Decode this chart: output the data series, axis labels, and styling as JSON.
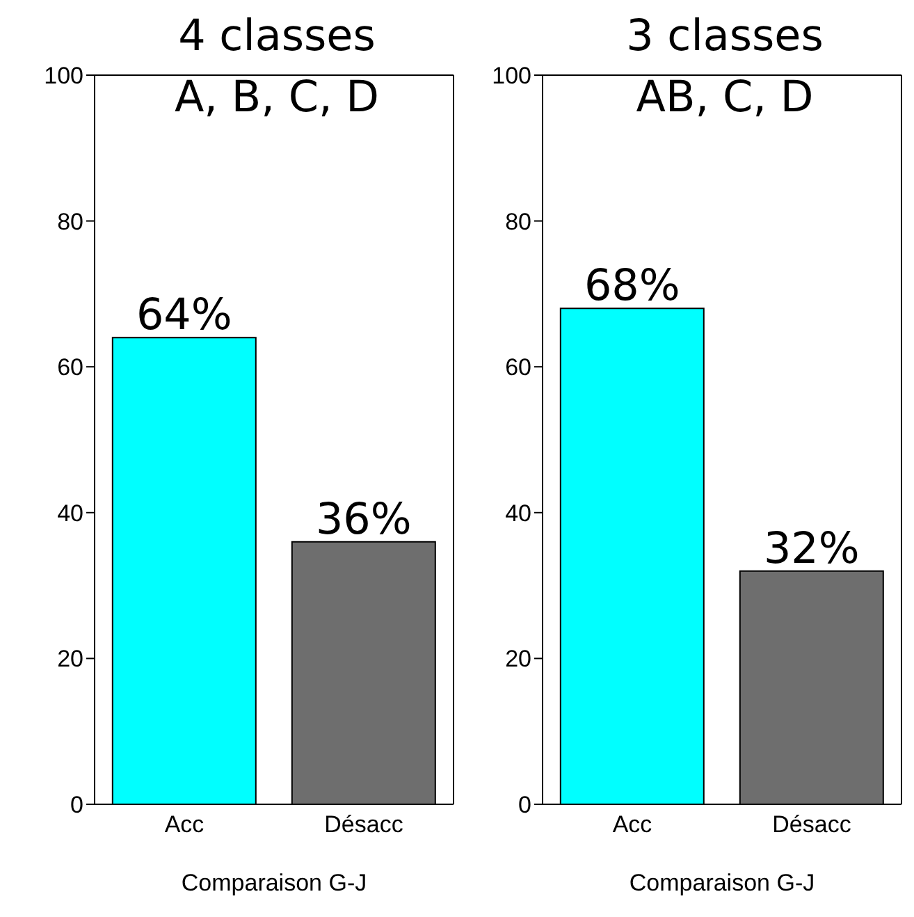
{
  "chart_data": [
    {
      "type": "bar",
      "title": "4 classes",
      "subtitle": "A, B, C, D",
      "xlabel": "Comparaison G-J",
      "categories": [
        "Acc",
        "Désacc"
      ],
      "values": [
        64,
        36
      ],
      "colors": [
        "#00ffff",
        "#6e6e6e"
      ],
      "value_labels": [
        "64%",
        "36%"
      ],
      "ylim": [
        0,
        100
      ],
      "yticks": [
        0,
        20,
        40,
        60,
        80,
        100
      ],
      "grid": false
    },
    {
      "type": "bar",
      "title": "3 classes",
      "subtitle": "AB, C, D",
      "xlabel": "Comparaison G-J",
      "categories": [
        "Acc",
        "Désacc"
      ],
      "values": [
        68,
        32
      ],
      "colors": [
        "#00ffff",
        "#6e6e6e"
      ],
      "value_labels": [
        "68%",
        "32%"
      ],
      "ylim": [
        0,
        100
      ],
      "yticks": [
        0,
        20,
        40,
        60,
        80,
        100
      ],
      "grid": false
    }
  ]
}
